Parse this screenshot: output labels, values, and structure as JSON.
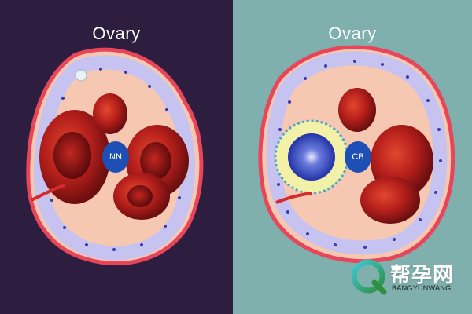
{
  "colors": {
    "left_background": "#2d1d3f",
    "right_background": "#7fb0ae",
    "ovary_outline": "#e8455a",
    "ovary_fill": "#f6c7b1",
    "tissue_lavender": "#c7c3f1",
    "follicle_red": "#b8231e",
    "label_blue": "#1d4fb5"
  },
  "left_panel": {
    "title": "Ovary",
    "label": "NN"
  },
  "right_panel": {
    "title": "Ovary",
    "label": "CB"
  },
  "watermark": {
    "logo_text": "帮孕网",
    "subtitle": "BANGYUNWANG",
    "logo_icon": "q-logo-icon"
  }
}
